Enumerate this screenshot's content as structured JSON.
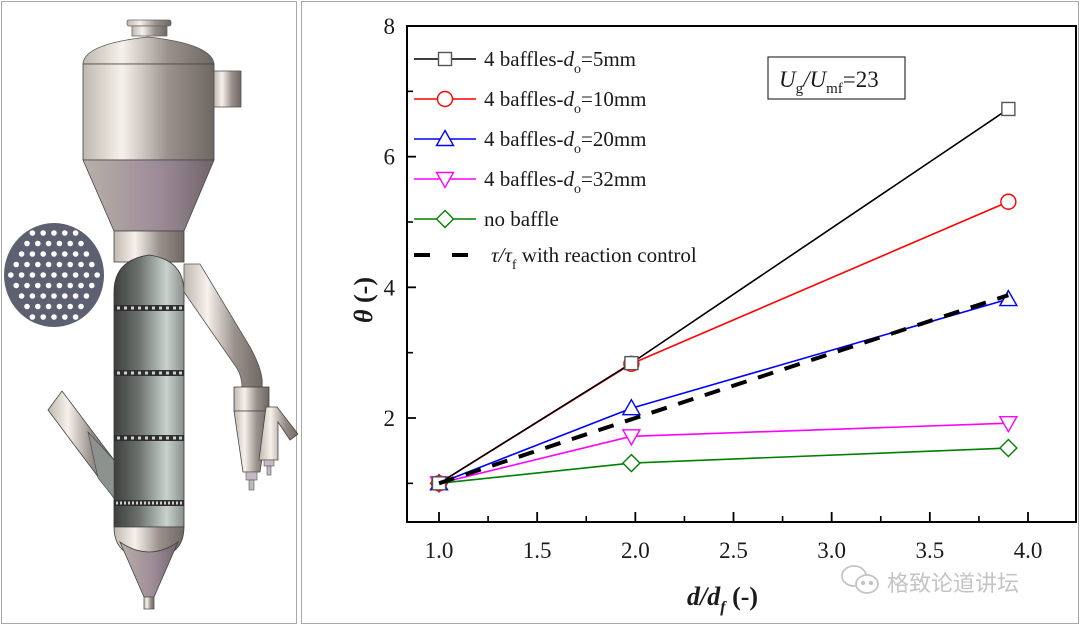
{
  "figure": {
    "illustration": {
      "subject": "baffled fluidized bed reactor",
      "inset": "perforated baffle plate"
    },
    "watermark": {
      "icon": "wechat-icon",
      "text": "格致论道讲坛"
    }
  },
  "chart_data": {
    "type": "line",
    "title": "",
    "xlabel": {
      "main": "d/d",
      "sub": "f",
      "suffix": " (-)"
    },
    "ylabel": {
      "main": "θ",
      "suffix": " (-)"
    },
    "xlim": [
      0.75,
      4.28
    ],
    "ylim": [
      0.65,
      8
    ],
    "xticks": [
      1.0,
      1.5,
      2.0,
      2.5,
      3.0,
      3.5,
      4.0
    ],
    "xtick_labels": [
      "1.0",
      "1.5",
      "2.0",
      "2.5",
      "3.0",
      "3.5",
      "4.0"
    ],
    "yticks": [
      2,
      4,
      6,
      8
    ],
    "ytick_labels": [
      "2",
      "4",
      "6",
      "8"
    ],
    "y_minor_ticks": [
      1,
      3,
      5,
      7
    ],
    "x_minor_ticks": [
      1.25,
      1.75,
      2.25,
      2.75,
      3.25,
      3.75
    ],
    "grid": false,
    "legend_position": "top-left",
    "annotation": {
      "main": "U",
      "sub1": "g",
      "mid": "/U",
      "sub2": "mf",
      "tail": "=23"
    },
    "series": [
      {
        "name": "4 baffles-d_o=5mm",
        "label_pre": "4 baffles-",
        "label_var": "d",
        "label_sub": "o",
        "label_post": "=5mm",
        "color": "#000000",
        "marker": "square",
        "dashed": false,
        "x": [
          1.0,
          1.98,
          3.9
        ],
        "y": [
          1.0,
          2.84,
          6.73
        ]
      },
      {
        "name": "4 baffles-d_o=10mm",
        "label_pre": "4 baffles-",
        "label_var": "d",
        "label_sub": "o",
        "label_post": "=10mm",
        "color": "#ff0000",
        "marker": "circle",
        "dashed": false,
        "x": [
          1.0,
          1.98,
          3.9
        ],
        "y": [
          1.0,
          2.83,
          5.31
        ]
      },
      {
        "name": "4 baffles-d_o=20mm",
        "label_pre": "4 baffles-",
        "label_var": "d",
        "label_sub": "o",
        "label_post": "=20mm",
        "color": "#0000ff",
        "marker": "triangle-up",
        "dashed": false,
        "x": [
          1.0,
          1.98,
          3.9
        ],
        "y": [
          1.0,
          2.15,
          3.82
        ]
      },
      {
        "name": "4 baffles-d_o=32mm",
        "label_pre": "4 baffles-",
        "label_var": "d",
        "label_sub": "o",
        "label_post": "=32mm",
        "color": "#ff00ff",
        "marker": "triangle-down",
        "dashed": false,
        "x": [
          1.0,
          1.98,
          3.9
        ],
        "y": [
          1.0,
          1.72,
          1.92
        ]
      },
      {
        "name": "no baffle",
        "label_pre": "no baffle",
        "label_var": "",
        "label_sub": "",
        "label_post": "",
        "color": "#008000",
        "marker": "diamond",
        "dashed": false,
        "x": [
          1.0,
          1.98,
          3.9
        ],
        "y": [
          1.0,
          1.31,
          1.54
        ]
      },
      {
        "name": "τ/τ_f with reaction control",
        "label_pre": "",
        "label_var": "τ/τ",
        "label_sub": "f",
        "label_post": " with reaction control",
        "color": "#000000",
        "marker": "none",
        "dashed": true,
        "x": [
          1.0,
          1.98,
          3.9
        ],
        "y": [
          1.0,
          1.98,
          3.88
        ]
      }
    ]
  }
}
